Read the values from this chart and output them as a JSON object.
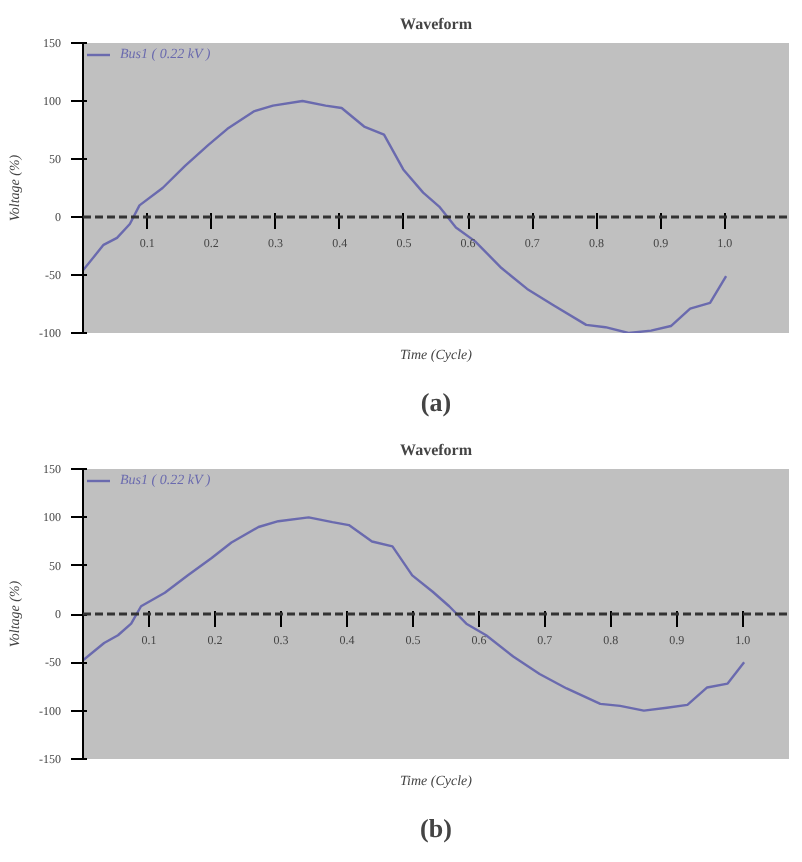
{
  "chart_data": [
    {
      "type": "line",
      "title": "Waveform",
      "xlabel": "Time (Cycle)",
      "ylabel": "Voltage (%)",
      "annotations": [
        "(a)"
      ],
      "x": [
        0,
        0.032,
        0.053,
        0.073,
        0.088,
        0.124,
        0.159,
        0.195,
        0.225,
        0.266,
        0.296,
        0.342,
        0.378,
        0.403,
        0.438,
        0.469,
        0.499,
        0.53,
        0.555,
        0.581,
        0.611,
        0.652,
        0.692,
        0.733,
        0.784,
        0.814,
        0.85,
        0.885,
        0.916,
        0.946,
        0.977,
        1.002
      ],
      "series": [
        {
          "name": "Bus1 ( 0.22 kV )",
          "color": "#6a6aae",
          "values": [
            -46,
            -24,
            -18,
            -6,
            10,
            25,
            44,
            62,
            76,
            91,
            96,
            100,
            96,
            94,
            78,
            71,
            41,
            21,
            9,
            -9,
            -21,
            -44,
            -62,
            -76,
            -93,
            -95,
            -100,
            -98,
            -94,
            -79,
            -74,
            -51
          ]
        }
      ],
      "xlim": [
        0,
        1.1
      ],
      "xticks": [
        0.1,
        0.2,
        0.3,
        0.4,
        0.5,
        0.6,
        0.7,
        0.8,
        0.9,
        {
          "value": 1,
          "label": "1.0"
        }
      ],
      "ylim": [
        -100,
        150
      ],
      "yticks": [
        150,
        100,
        50,
        0,
        -50,
        -100
      ],
      "ref_lines": [
        {
          "axis": "y",
          "value": 0,
          "color": "#333333",
          "line_style": "dashed"
        }
      ],
      "legend": "top left",
      "marker": "none",
      "line_style": "solid"
    },
    {
      "type": "line",
      "title": "Waveform",
      "xlabel": "Time (Cycle)",
      "ylabel": "Voltage (%)",
      "annotations": [
        "(b)"
      ],
      "x": [
        0,
        0.032,
        0.053,
        0.073,
        0.088,
        0.124,
        0.159,
        0.195,
        0.225,
        0.266,
        0.296,
        0.342,
        0.378,
        0.403,
        0.438,
        0.469,
        0.499,
        0.53,
        0.555,
        0.581,
        0.611,
        0.652,
        0.692,
        0.733,
        0.784,
        0.814,
        0.85,
        0.885,
        0.916,
        0.946,
        0.977,
        1.002
      ],
      "series": [
        {
          "name": "Bus1 ( 0.22 kV )",
          "color": "#6a6aae",
          "values": [
            -48,
            -30,
            -22,
            -10,
            8,
            22,
            40,
            58,
            74,
            90,
            96,
            100,
            95,
            92,
            75,
            70,
            40,
            23,
            8,
            -10,
            -22,
            -44,
            -62,
            -77,
            -93,
            -95,
            -100,
            -97,
            -94,
            -76,
            -72,
            -50
          ]
        }
      ],
      "xlim": [
        0,
        1.07
      ],
      "xticks": [
        0.1,
        0.2,
        0.3,
        0.4,
        0.5,
        0.6,
        0.7,
        0.8,
        0.9,
        {
          "value": 1,
          "label": "1.0"
        }
      ],
      "ylim": [
        -150,
        150
      ],
      "yticks": [
        150,
        100,
        50,
        0,
        -50,
        -100,
        -150
      ],
      "ref_lines": [
        {
          "axis": "y",
          "value": 0,
          "color": "#333333",
          "line_style": "dashed"
        }
      ],
      "legend": "top left",
      "marker": "none",
      "line_style": "solid"
    }
  ]
}
